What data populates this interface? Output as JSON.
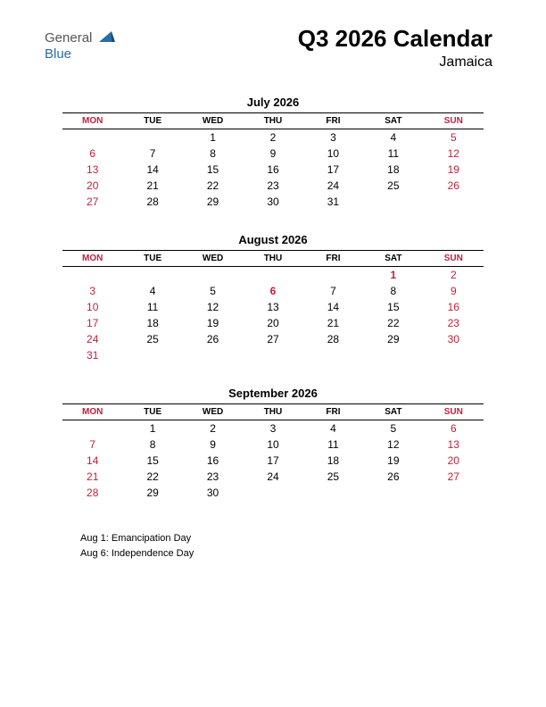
{
  "logo": {
    "text1": "General",
    "text2": "Blue",
    "color_text1": "#555555",
    "color_text2": "#2b6ca3",
    "shape_color": "#2b6ca3"
  },
  "title": "Q3 2026 Calendar",
  "subtitle": "Jamaica",
  "colors": {
    "text": "#000000",
    "red": "#c41e3a",
    "border": "#000000",
    "background": "#ffffff"
  },
  "day_headers": [
    "MON",
    "TUE",
    "WED",
    "THU",
    "FRI",
    "SAT",
    "SUN"
  ],
  "header_red_cols": [
    0,
    6
  ],
  "months": [
    {
      "title": "July 2026",
      "weeks": [
        [
          {
            "d": ""
          },
          {
            "d": ""
          },
          {
            "d": "1"
          },
          {
            "d": "2"
          },
          {
            "d": "3"
          },
          {
            "d": "4"
          },
          {
            "d": "5",
            "red": true
          }
        ],
        [
          {
            "d": "6",
            "red": true
          },
          {
            "d": "7"
          },
          {
            "d": "8"
          },
          {
            "d": "9"
          },
          {
            "d": "10"
          },
          {
            "d": "11"
          },
          {
            "d": "12",
            "red": true
          }
        ],
        [
          {
            "d": "13",
            "red": true
          },
          {
            "d": "14"
          },
          {
            "d": "15"
          },
          {
            "d": "16"
          },
          {
            "d": "17"
          },
          {
            "d": "18"
          },
          {
            "d": "19",
            "red": true
          }
        ],
        [
          {
            "d": "20",
            "red": true
          },
          {
            "d": "21"
          },
          {
            "d": "22"
          },
          {
            "d": "23"
          },
          {
            "d": "24"
          },
          {
            "d": "25"
          },
          {
            "d": "26",
            "red": true
          }
        ],
        [
          {
            "d": "27",
            "red": true
          },
          {
            "d": "28"
          },
          {
            "d": "29"
          },
          {
            "d": "30"
          },
          {
            "d": "31"
          },
          {
            "d": ""
          },
          {
            "d": ""
          }
        ]
      ]
    },
    {
      "title": "August 2026",
      "weeks": [
        [
          {
            "d": ""
          },
          {
            "d": ""
          },
          {
            "d": ""
          },
          {
            "d": ""
          },
          {
            "d": ""
          },
          {
            "d": "1",
            "red": true,
            "bold": true
          },
          {
            "d": "2",
            "red": true
          }
        ],
        [
          {
            "d": "3",
            "red": true
          },
          {
            "d": "4"
          },
          {
            "d": "5"
          },
          {
            "d": "6",
            "red": true,
            "bold": true
          },
          {
            "d": "7"
          },
          {
            "d": "8"
          },
          {
            "d": "9",
            "red": true
          }
        ],
        [
          {
            "d": "10",
            "red": true
          },
          {
            "d": "11"
          },
          {
            "d": "12"
          },
          {
            "d": "13"
          },
          {
            "d": "14"
          },
          {
            "d": "15"
          },
          {
            "d": "16",
            "red": true
          }
        ],
        [
          {
            "d": "17",
            "red": true
          },
          {
            "d": "18"
          },
          {
            "d": "19"
          },
          {
            "d": "20"
          },
          {
            "d": "21"
          },
          {
            "d": "22"
          },
          {
            "d": "23",
            "red": true
          }
        ],
        [
          {
            "d": "24",
            "red": true
          },
          {
            "d": "25"
          },
          {
            "d": "26"
          },
          {
            "d": "27"
          },
          {
            "d": "28"
          },
          {
            "d": "29"
          },
          {
            "d": "30",
            "red": true
          }
        ],
        [
          {
            "d": "31",
            "red": true
          },
          {
            "d": ""
          },
          {
            "d": ""
          },
          {
            "d": ""
          },
          {
            "d": ""
          },
          {
            "d": ""
          },
          {
            "d": ""
          }
        ]
      ]
    },
    {
      "title": "September 2026",
      "weeks": [
        [
          {
            "d": ""
          },
          {
            "d": "1"
          },
          {
            "d": "2"
          },
          {
            "d": "3"
          },
          {
            "d": "4"
          },
          {
            "d": "5"
          },
          {
            "d": "6",
            "red": true
          }
        ],
        [
          {
            "d": "7",
            "red": true
          },
          {
            "d": "8"
          },
          {
            "d": "9"
          },
          {
            "d": "10"
          },
          {
            "d": "11"
          },
          {
            "d": "12"
          },
          {
            "d": "13",
            "red": true
          }
        ],
        [
          {
            "d": "14",
            "red": true
          },
          {
            "d": "15"
          },
          {
            "d": "16"
          },
          {
            "d": "17"
          },
          {
            "d": "18"
          },
          {
            "d": "19"
          },
          {
            "d": "20",
            "red": true
          }
        ],
        [
          {
            "d": "21",
            "red": true
          },
          {
            "d": "22"
          },
          {
            "d": "23"
          },
          {
            "d": "24"
          },
          {
            "d": "25"
          },
          {
            "d": "26"
          },
          {
            "d": "27",
            "red": true
          }
        ],
        [
          {
            "d": "28",
            "red": true
          },
          {
            "d": "29"
          },
          {
            "d": "30"
          },
          {
            "d": ""
          },
          {
            "d": ""
          },
          {
            "d": ""
          },
          {
            "d": ""
          }
        ]
      ]
    }
  ],
  "holidays": [
    "Aug 1: Emancipation Day",
    "Aug 6: Independence Day"
  ]
}
